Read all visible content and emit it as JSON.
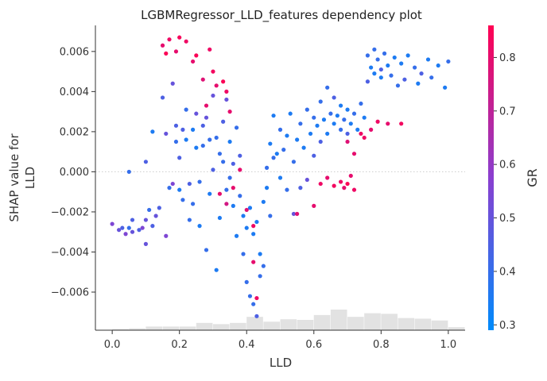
{
  "chart_data": {
    "type": "scatter",
    "title": "LGBMRegressor_LLD_features dependency plot",
    "xlabel": "LLD",
    "ylabel_lines": [
      "SHAP value for",
      "LLD"
    ],
    "xlim": [
      -0.05,
      1.05
    ],
    "ylim": [
      -0.0079,
      0.0073
    ],
    "x_ticks": [
      0.0,
      0.2,
      0.4,
      0.6,
      0.8,
      1.0
    ],
    "x_tick_labels": [
      "0.0",
      "0.2",
      "0.4",
      "0.6",
      "0.8",
      "1.0"
    ],
    "y_ticks": [
      0.006,
      0.004,
      0.002,
      0.0,
      -0.002,
      -0.004,
      -0.006
    ],
    "y_tick_labels": [
      "0.006",
      "0.004",
      "0.002",
      "0.000",
      "−0.002",
      "−0.004",
      "−0.006"
    ],
    "zero_line": true,
    "grid": false,
    "colorbar": {
      "label": "GR",
      "range": [
        0.29,
        0.86
      ],
      "ticks": [
        0.3,
        0.4,
        0.5,
        0.6,
        0.7,
        0.8
      ],
      "tick_labels": [
        "0.3",
        "0.4",
        "0.5",
        "0.6",
        "0.7",
        "0.8"
      ],
      "color_low": "#008bfb",
      "color_mid": "#8a3fd0",
      "color_high": "#ff0052"
    },
    "histogram": {
      "bin_start": 0.0,
      "bin_width": 0.05,
      "counts": [
        2,
        3,
        6,
        6,
        6,
        12,
        10,
        12,
        22,
        14,
        18,
        17,
        25,
        34,
        22,
        28,
        27,
        20,
        19,
        16,
        5
      ],
      "color": "#e2e2e2"
    },
    "series": [
      {
        "points": [
          [
            0.0,
            -0.0026,
            0.55
          ],
          [
            0.02,
            -0.0029,
            0.5
          ],
          [
            0.03,
            -0.0028,
            0.45
          ],
          [
            0.04,
            -0.0031,
            0.55
          ],
          [
            0.05,
            -0.0028,
            0.4
          ],
          [
            0.06,
            -0.0024,
            0.45
          ],
          [
            0.05,
            0.0,
            0.4
          ],
          [
            0.06,
            -0.003,
            0.5
          ],
          [
            0.08,
            -0.0029,
            0.45
          ],
          [
            0.09,
            -0.0028,
            0.55
          ],
          [
            0.1,
            -0.0036,
            0.5
          ],
          [
            0.1,
            -0.0024,
            0.5
          ],
          [
            0.1,
            0.0005,
            0.45
          ],
          [
            0.11,
            -0.0019,
            0.4
          ],
          [
            0.12,
            0.002,
            0.35
          ],
          [
            0.12,
            -0.0027,
            0.45
          ],
          [
            0.13,
            -0.0022,
            0.5
          ],
          [
            0.14,
            -0.0018,
            0.45
          ],
          [
            0.15,
            0.0037,
            0.45
          ],
          [
            0.16,
            0.0019,
            0.5
          ],
          [
            0.16,
            -0.0032,
            0.55
          ],
          [
            0.17,
            -0.0008,
            0.4
          ],
          [
            0.18,
            0.0044,
            0.5
          ],
          [
            0.18,
            -0.0006,
            0.55
          ],
          [
            0.19,
            0.0023,
            0.45
          ],
          [
            0.19,
            0.0015,
            0.4
          ],
          [
            0.2,
            0.0007,
            0.45
          ],
          [
            0.2,
            -0.0009,
            0.35
          ],
          [
            0.21,
            -0.0014,
            0.4
          ],
          [
            0.21,
            0.0021,
            0.45
          ],
          [
            0.22,
            0.0031,
            0.4
          ],
          [
            0.22,
            0.0016,
            0.35
          ],
          [
            0.23,
            -0.0006,
            0.45
          ],
          [
            0.23,
            -0.0024,
            0.4
          ],
          [
            0.24,
            0.0021,
            0.35
          ],
          [
            0.24,
            -0.0016,
            0.4
          ],
          [
            0.25,
            0.0029,
            0.5
          ],
          [
            0.25,
            0.0012,
            0.35
          ],
          [
            0.26,
            -0.0005,
            0.4
          ],
          [
            0.26,
            -0.0027,
            0.35
          ],
          [
            0.27,
            0.0023,
            0.45
          ],
          [
            0.27,
            0.0013,
            0.4
          ],
          [
            0.28,
            0.0027,
            0.5
          ],
          [
            0.28,
            -0.0039,
            0.4
          ],
          [
            0.29,
            0.0016,
            0.4
          ],
          [
            0.29,
            -0.0011,
            0.35
          ],
          [
            0.3,
            0.0038,
            0.5
          ],
          [
            0.3,
            0.0001,
            0.45
          ],
          [
            0.31,
            0.0017,
            0.4
          ],
          [
            0.31,
            -0.0049,
            0.35
          ],
          [
            0.32,
            0.0009,
            0.4
          ],
          [
            0.32,
            -0.0023,
            0.35
          ],
          [
            0.33,
            0.0025,
            0.45
          ],
          [
            0.33,
            0.0005,
            0.4
          ],
          [
            0.34,
            0.0036,
            0.5
          ],
          [
            0.34,
            -0.0009,
            0.4
          ],
          [
            0.35,
            0.0015,
            0.35
          ],
          [
            0.35,
            -0.0003,
            0.4
          ],
          [
            0.36,
            0.0004,
            0.45
          ],
          [
            0.36,
            -0.0017,
            0.35
          ],
          [
            0.37,
            0.0022,
            0.4
          ],
          [
            0.37,
            -0.0032,
            0.35
          ],
          [
            0.38,
            -0.0012,
            0.4
          ],
          [
            0.38,
            0.0008,
            0.45
          ],
          [
            0.39,
            -0.0022,
            0.35
          ],
          [
            0.39,
            -0.0041,
            0.4
          ],
          [
            0.4,
            -0.0028,
            0.35
          ],
          [
            0.4,
            -0.0055,
            0.4
          ],
          [
            0.41,
            -0.0018,
            0.35
          ],
          [
            0.41,
            -0.0062,
            0.4
          ],
          [
            0.42,
            -0.0031,
            0.35
          ],
          [
            0.42,
            -0.0066,
            0.4
          ],
          [
            0.43,
            -0.0025,
            0.35
          ],
          [
            0.43,
            -0.0072,
            0.45
          ],
          [
            0.44,
            -0.0041,
            0.35
          ],
          [
            0.44,
            -0.0052,
            0.4
          ],
          [
            0.45,
            -0.0015,
            0.35
          ],
          [
            0.45,
            -0.0047,
            0.4
          ],
          [
            0.46,
            -0.0008,
            0.35
          ],
          [
            0.46,
            0.0002,
            0.4
          ],
          [
            0.47,
            0.0014,
            0.35
          ],
          [
            0.47,
            -0.0022,
            0.4
          ],
          [
            0.48,
            0.0028,
            0.35
          ],
          [
            0.48,
            0.0007,
            0.4
          ],
          [
            0.49,
            0.0009,
            0.35
          ],
          [
            0.5,
            0.0021,
            0.4
          ],
          [
            0.5,
            -0.0003,
            0.35
          ],
          [
            0.51,
            0.0011,
            0.4
          ],
          [
            0.52,
            0.0018,
            0.35
          ],
          [
            0.52,
            -0.0009,
            0.4
          ],
          [
            0.53,
            0.0029,
            0.35
          ],
          [
            0.54,
            0.0005,
            0.4
          ],
          [
            0.54,
            -0.0021,
            0.5
          ],
          [
            0.55,
            0.0016,
            0.35
          ],
          [
            0.56,
            0.0024,
            0.4
          ],
          [
            0.56,
            -0.0008,
            0.45
          ],
          [
            0.57,
            0.0012,
            0.35
          ],
          [
            0.58,
            0.0031,
            0.4
          ],
          [
            0.58,
            -0.0004,
            0.5
          ],
          [
            0.59,
            0.0019,
            0.35
          ],
          [
            0.6,
            0.0027,
            0.4
          ],
          [
            0.6,
            0.0008,
            0.45
          ],
          [
            0.61,
            0.0023,
            0.35
          ],
          [
            0.62,
            0.0035,
            0.4
          ],
          [
            0.62,
            0.0015,
            0.45
          ],
          [
            0.63,
            0.0026,
            0.35
          ],
          [
            0.64,
            0.0042,
            0.4
          ],
          [
            0.64,
            0.0019,
            0.35
          ],
          [
            0.65,
            0.0029,
            0.4
          ],
          [
            0.66,
            0.0024,
            0.35
          ],
          [
            0.66,
            0.0037,
            0.45
          ],
          [
            0.67,
            0.0028,
            0.35
          ],
          [
            0.68,
            0.0021,
            0.4
          ],
          [
            0.68,
            0.0033,
            0.35
          ],
          [
            0.69,
            0.0026,
            0.4
          ],
          [
            0.7,
            0.0031,
            0.35
          ],
          [
            0.7,
            0.0019,
            0.45
          ],
          [
            0.71,
            0.0024,
            0.35
          ],
          [
            0.72,
            0.0029,
            0.4
          ],
          [
            0.73,
            0.0021,
            0.35
          ],
          [
            0.74,
            0.0034,
            0.4
          ],
          [
            0.75,
            0.0027,
            0.35
          ],
          [
            0.76,
            0.0058,
            0.4
          ],
          [
            0.76,
            0.0045,
            0.45
          ],
          [
            0.77,
            0.0052,
            0.35
          ],
          [
            0.78,
            0.0061,
            0.4
          ],
          [
            0.78,
            0.0049,
            0.35
          ],
          [
            0.79,
            0.0056,
            0.4
          ],
          [
            0.8,
            0.0051,
            0.45
          ],
          [
            0.8,
            0.0047,
            0.35
          ],
          [
            0.81,
            0.0059,
            0.4
          ],
          [
            0.82,
            0.0053,
            0.35
          ],
          [
            0.83,
            0.0048,
            0.4
          ],
          [
            0.84,
            0.0057,
            0.35
          ],
          [
            0.85,
            0.0043,
            0.4
          ],
          [
            0.86,
            0.0054,
            0.35
          ],
          [
            0.87,
            0.0046,
            0.45
          ],
          [
            0.88,
            0.0058,
            0.35
          ],
          [
            0.9,
            0.0052,
            0.4
          ],
          [
            0.91,
            0.0044,
            0.35
          ],
          [
            0.92,
            0.0049,
            0.45
          ],
          [
            0.94,
            0.0056,
            0.35
          ],
          [
            0.95,
            0.0047,
            0.4
          ],
          [
            0.97,
            0.0053,
            0.35
          ],
          [
            0.99,
            0.0042,
            0.35
          ],
          [
            1.0,
            0.0055,
            0.4
          ],
          [
            0.15,
            0.0063,
            0.8
          ],
          [
            0.16,
            0.0059,
            0.85
          ],
          [
            0.17,
            0.0066,
            0.82
          ],
          [
            0.19,
            0.006,
            0.8
          ],
          [
            0.2,
            0.0067,
            0.84
          ],
          [
            0.22,
            0.0065,
            0.82
          ],
          [
            0.24,
            0.0055,
            0.8
          ],
          [
            0.25,
            0.0058,
            0.85
          ],
          [
            0.27,
            0.0046,
            0.78
          ],
          [
            0.28,
            0.0033,
            0.8
          ],
          [
            0.29,
            0.0061,
            0.82
          ],
          [
            0.3,
            0.005,
            0.83
          ],
          [
            0.31,
            0.0043,
            0.8
          ],
          [
            0.33,
            0.0045,
            0.85
          ],
          [
            0.34,
            0.004,
            0.82
          ],
          [
            0.35,
            0.003,
            0.8
          ],
          [
            0.32,
            -0.0011,
            0.8
          ],
          [
            0.34,
            -0.0016,
            0.75
          ],
          [
            0.38,
            0.0001,
            0.8
          ],
          [
            0.4,
            -0.0019,
            0.78
          ],
          [
            0.42,
            -0.0027,
            0.82
          ],
          [
            0.42,
            -0.0045,
            0.8
          ],
          [
            0.43,
            -0.0063,
            0.82
          ],
          [
            0.36,
            -0.0008,
            0.8
          ],
          [
            0.55,
            -0.0021,
            0.78
          ],
          [
            0.6,
            -0.0017,
            0.8
          ],
          [
            0.62,
            -0.0006,
            0.82
          ],
          [
            0.64,
            -0.0003,
            0.8
          ],
          [
            0.66,
            -0.0007,
            0.83
          ],
          [
            0.68,
            -0.0005,
            0.82
          ],
          [
            0.69,
            -0.0008,
            0.8
          ],
          [
            0.7,
            -0.0006,
            0.85
          ],
          [
            0.72,
            -0.0009,
            0.82
          ],
          [
            0.7,
            0.0015,
            0.78
          ],
          [
            0.72,
            0.0009,
            0.8
          ],
          [
            0.75,
            0.0017,
            0.82
          ],
          [
            0.77,
            0.0021,
            0.8
          ],
          [
            0.79,
            0.0025,
            0.82
          ],
          [
            0.82,
            0.0024,
            0.8
          ],
          [
            0.86,
            0.0024,
            0.83
          ],
          [
            0.74,
            0.0019,
            0.82
          ],
          [
            0.71,
            -0.0002,
            0.8
          ]
        ]
      }
    ]
  }
}
